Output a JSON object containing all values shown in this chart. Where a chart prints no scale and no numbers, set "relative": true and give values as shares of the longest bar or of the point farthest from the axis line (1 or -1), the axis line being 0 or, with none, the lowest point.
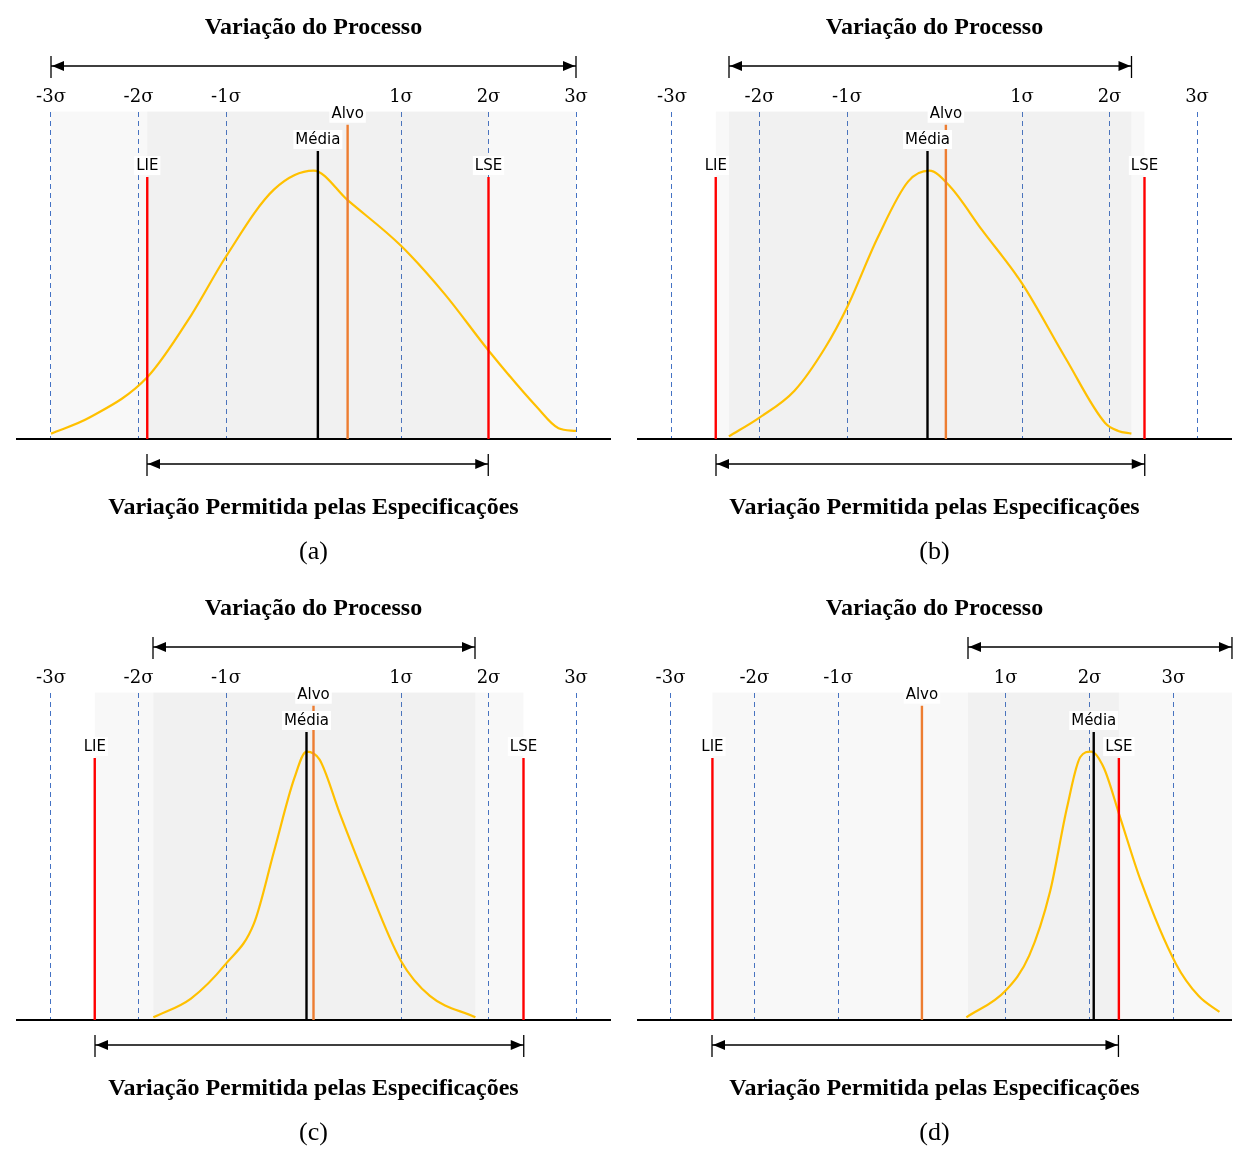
{
  "chart_data": [
    {
      "type": "line",
      "title": "Variação do Processo",
      "xlabel": "Variação Permitida pelas Especificações",
      "annotations": [
        "(a)"
      ],
      "relative": true,
      "marker": "none",
      "legend": false,
      "grid": "x",
      "xlim": [
        -3.4,
        3.4
      ],
      "xticks": [
        {
          "value": -3,
          "label": "-3σ"
        },
        {
          "value": -2,
          "label": "-2σ"
        },
        {
          "value": -1,
          "label": "-1σ"
        },
        {
          "value": 1,
          "label": "1σ"
        },
        {
          "value": 2,
          "label": "2σ"
        },
        {
          "value": 3,
          "label": "3σ"
        }
      ],
      "series": [
        {
          "color": "#ffc000",
          "x": [
            -3,
            -2.56,
            -1.9,
            -1.4,
            -1,
            -0.45,
            0,
            0.39,
            1,
            1.5,
            2,
            2.55,
            2.8,
            3
          ],
          "values": [
            0.02,
            0.08,
            0.23,
            0.46,
            0.68,
            0.93,
            1,
            0.89,
            0.72,
            0.54,
            0.33,
            0.12,
            0.04,
            0.03
          ]
        }
      ],
      "ref_lines": [
        {
          "axis": "x",
          "value": -1.9,
          "label": "LIE",
          "color": "#ff0000"
        },
        {
          "axis": "x",
          "value": 2,
          "label": "LSE",
          "color": "#ff0000"
        },
        {
          "axis": "x",
          "value": 0.05,
          "label": "Média",
          "color": "#000000"
        },
        {
          "axis": "x",
          "value": 0.39,
          "label": "Alvo",
          "color": "#ed7d31"
        }
      ],
      "bands": [
        {
          "axis": "x",
          "from": -3,
          "to": 3
        },
        {
          "axis": "x",
          "from": -1.9,
          "to": 2
        }
      ]
    },
    {
      "type": "line",
      "title": "Variação do Processo",
      "xlabel": "Variação Permitida pelas Especificações",
      "annotations": [
        "(b)"
      ],
      "relative": true,
      "marker": "none",
      "legend": false,
      "grid": "x",
      "xlim": [
        -3.4,
        3.4
      ],
      "xticks": [
        {
          "value": -3,
          "label": "-3σ"
        },
        {
          "value": -2,
          "label": "-2σ"
        },
        {
          "value": -1,
          "label": "-1σ"
        },
        {
          "value": 1,
          "label": "1σ"
        },
        {
          "value": 2,
          "label": "2σ"
        },
        {
          "value": 3,
          "label": "3σ"
        }
      ],
      "series": [
        {
          "color": "#ffc000",
          "x": [
            -2.35,
            -2,
            -1.6,
            -1.25,
            -1,
            -0.65,
            -0.3,
            -0.06,
            0.18,
            0.54,
            1,
            1.5,
            1.95,
            2.1,
            2.25
          ],
          "values": [
            0.01,
            0.08,
            0.18,
            0.34,
            0.49,
            0.75,
            0.96,
            1,
            0.94,
            0.78,
            0.58,
            0.3,
            0.06,
            0.03,
            0.02
          ]
        }
      ],
      "ref_lines": [
        {
          "axis": "x",
          "value": -2.5,
          "label": "LIE",
          "color": "#ff0000"
        },
        {
          "axis": "x",
          "value": 2.4,
          "label": "LSE",
          "color": "#ff0000"
        },
        {
          "axis": "x",
          "value": -0.08,
          "label": "Média",
          "color": "#000000"
        },
        {
          "axis": "x",
          "value": 0.13,
          "label": "Alvo",
          "color": "#ed7d31"
        }
      ],
      "bands": [
        {
          "axis": "x",
          "from": -2.35,
          "to": 2.25
        },
        {
          "axis": "x",
          "from": -2.5,
          "to": 2.4
        }
      ]
    },
    {
      "type": "line",
      "title": "Variação do Processo",
      "xlabel": "Variação Permitida pelas Especificações",
      "annotations": [
        "(c)"
      ],
      "relative": true,
      "marker": "none",
      "legend": false,
      "grid": "x",
      "xlim": [
        -3.4,
        3.4
      ],
      "xticks": [
        {
          "value": -3,
          "label": "-3σ"
        },
        {
          "value": -2,
          "label": "-2σ"
        },
        {
          "value": -1,
          "label": "-1σ"
        },
        {
          "value": 1,
          "label": "1σ"
        },
        {
          "value": 2,
          "label": "2σ"
        },
        {
          "value": 3,
          "label": "3σ"
        }
      ],
      "series": [
        {
          "color": "#ffc000",
          "x": [
            -1.83,
            -1.4,
            -1,
            -0.68,
            -0.45,
            -0.22,
            -0.08,
            0.07,
            0.3,
            0.59,
            1,
            1.33,
            1.85
          ],
          "values": [
            0.01,
            0.08,
            0.21,
            0.36,
            0.63,
            0.9,
            1,
            0.97,
            0.77,
            0.53,
            0.22,
            0.09,
            0.01
          ]
        }
      ],
      "ref_lines": [
        {
          "axis": "x",
          "value": -2.5,
          "label": "LIE",
          "color": "#ff0000"
        },
        {
          "axis": "x",
          "value": 2.4,
          "label": "LSE",
          "color": "#ff0000"
        },
        {
          "axis": "x",
          "value": -0.08,
          "label": "Média",
          "color": "#000000"
        },
        {
          "axis": "x",
          "value": 0,
          "label": "Alvo",
          "color": "#ed7d31"
        }
      ],
      "bands": [
        {
          "axis": "x",
          "from": -1.83,
          "to": 1.85
        },
        {
          "axis": "x",
          "from": -2.5,
          "to": 2.4
        }
      ]
    },
    {
      "type": "line",
      "title": "Variação do Processo",
      "xlabel": "Variação Permitida pelas Especificações",
      "annotations": [
        "(d)"
      ],
      "relative": true,
      "marker": "none",
      "legend": false,
      "grid": "x",
      "xlim": [
        -3.4,
        3.7
      ],
      "xticks": [
        {
          "value": -3,
          "label": "-3σ"
        },
        {
          "value": -2,
          "label": "-2σ"
        },
        {
          "value": -1,
          "label": "-1σ"
        },
        {
          "value": 1,
          "label": "1σ"
        },
        {
          "value": 2,
          "label": "2σ"
        },
        {
          "value": 3,
          "label": "3σ"
        }
      ],
      "series": [
        {
          "color": "#ffc000",
          "x": [
            0.53,
            1,
            1.28,
            1.53,
            1.73,
            1.89,
            2.02,
            2.17,
            2.36,
            2.61,
            3.03,
            3.3,
            3.55
          ],
          "values": [
            0.01,
            0.11,
            0.24,
            0.48,
            0.79,
            0.98,
            1,
            0.94,
            0.76,
            0.52,
            0.21,
            0.09,
            0.03
          ]
        }
      ],
      "ref_lines": [
        {
          "axis": "x",
          "value": -2.5,
          "label": "LIE",
          "color": "#ff0000"
        },
        {
          "axis": "x",
          "value": 2.35,
          "label": "LSE",
          "color": "#ff0000"
        },
        {
          "axis": "x",
          "value": 2.05,
          "label": "Média",
          "color": "#000000"
        },
        {
          "axis": "x",
          "value": 0,
          "label": "Alvo",
          "color": "#ed7d31"
        }
      ],
      "bands": [
        {
          "axis": "x",
          "from": 0.55,
          "to": 3.7
        },
        {
          "axis": "x",
          "from": -2.5,
          "to": 2.35
        }
      ]
    }
  ]
}
